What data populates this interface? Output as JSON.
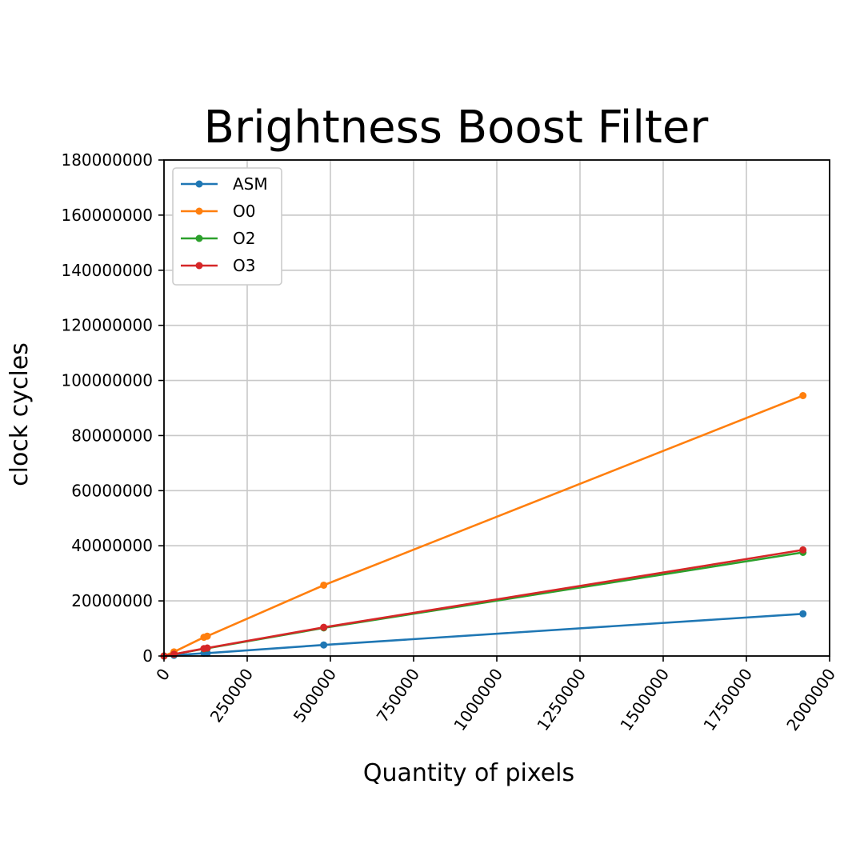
{
  "chart_data": {
    "type": "line",
    "title": "Brightness Boost Filter",
    "xlabel": "Quantity of pixels",
    "ylabel": "clock cycles",
    "xlim": [
      0,
      2000000
    ],
    "ylim": [
      0,
      180000000
    ],
    "xticks": [
      0,
      250000,
      500000,
      750000,
      1000000,
      1250000,
      1500000,
      1750000,
      2000000
    ],
    "xtick_labels": [
      "0",
      "250000",
      "500000",
      "750000",
      "1000000",
      "1250000",
      "1500000",
      "1750000",
      "2000000"
    ],
    "yticks": [
      0,
      20000000,
      40000000,
      60000000,
      80000000,
      100000000,
      120000000,
      140000000,
      160000000,
      180000000
    ],
    "ytick_labels": [
      "0",
      "20000000",
      "40000000",
      "60000000",
      "80000000",
      "100000000",
      "120000000",
      "140000000",
      "160000000",
      "180000000"
    ],
    "grid": true,
    "legend_position": "upper-left",
    "x": [
      1,
      30000,
      120000,
      130000,
      480000,
      1920000
    ],
    "series": [
      {
        "name": "ASM",
        "color": "#1f77b4",
        "values": [
          1000,
          250000,
          1000000,
          1050000,
          4000000,
          15300000
        ]
      },
      {
        "name": "O0",
        "color": "#ff7f0e",
        "values": [
          2000,
          1500000,
          6800000,
          7200000,
          25700000,
          94500000
        ]
      },
      {
        "name": "O2",
        "color": "#2ca02c",
        "values": [
          1500,
          600000,
          2600000,
          2800000,
          10200000,
          37600000
        ]
      },
      {
        "name": "O3",
        "color": "#d62728",
        "values": [
          1500,
          650000,
          2700000,
          2900000,
          10400000,
          38500000
        ]
      }
    ]
  }
}
